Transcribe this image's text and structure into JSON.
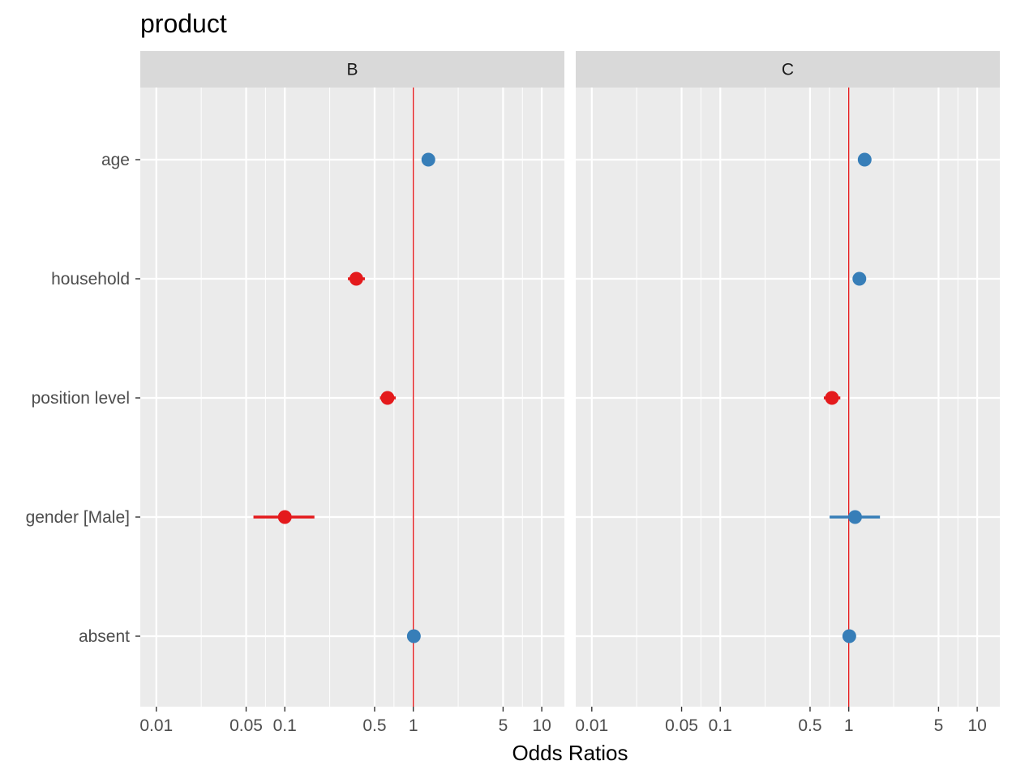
{
  "chart_data": {
    "type": "scatter",
    "title": "product",
    "xlabel": "Odds Ratios",
    "ylabel": "",
    "x_scale": "log10",
    "xlim": [
      0.0075,
      15
    ],
    "x_ticks": [
      0.01,
      0.05,
      0.1,
      0.5,
      1,
      5,
      10
    ],
    "x_tick_labels": [
      "0.01",
      "0.05",
      "0.1",
      "0.5",
      "1",
      "5",
      "10"
    ],
    "reference_line": 1,
    "terms": [
      "age",
      "household",
      "position level",
      "gender [Male]",
      "absent"
    ],
    "colors": {
      "positive": "#377eb8",
      "negative": "#e41a1c",
      "reference": "#e41a1c"
    },
    "panels": [
      {
        "label": "B",
        "estimates": [
          {
            "term": "age",
            "or": 1.31,
            "low": 1.28,
            "high": 1.34,
            "color": "positive"
          },
          {
            "term": "household",
            "or": 0.36,
            "low": 0.31,
            "high": 0.42,
            "color": "negative"
          },
          {
            "term": "position level",
            "or": 0.63,
            "low": 0.55,
            "high": 0.73,
            "color": "negative"
          },
          {
            "term": "gender [Male]",
            "or": 0.1,
            "low": 0.057,
            "high": 0.17,
            "color": "negative"
          },
          {
            "term": "absent",
            "or": 1.01,
            "low": 1.0,
            "high": 1.02,
            "color": "positive"
          }
        ]
      },
      {
        "label": "C",
        "estimates": [
          {
            "term": "age",
            "or": 1.33,
            "low": 1.3,
            "high": 1.36,
            "color": "positive"
          },
          {
            "term": "household",
            "or": 1.21,
            "low": 1.17,
            "high": 1.25,
            "color": "positive"
          },
          {
            "term": "position level",
            "or": 0.74,
            "low": 0.64,
            "high": 0.86,
            "color": "negative"
          },
          {
            "term": "gender [Male]",
            "or": 1.12,
            "low": 0.71,
            "high": 1.75,
            "color": "positive"
          },
          {
            "term": "absent",
            "or": 1.01,
            "low": 1.0,
            "high": 1.02,
            "color": "positive"
          }
        ]
      }
    ]
  }
}
